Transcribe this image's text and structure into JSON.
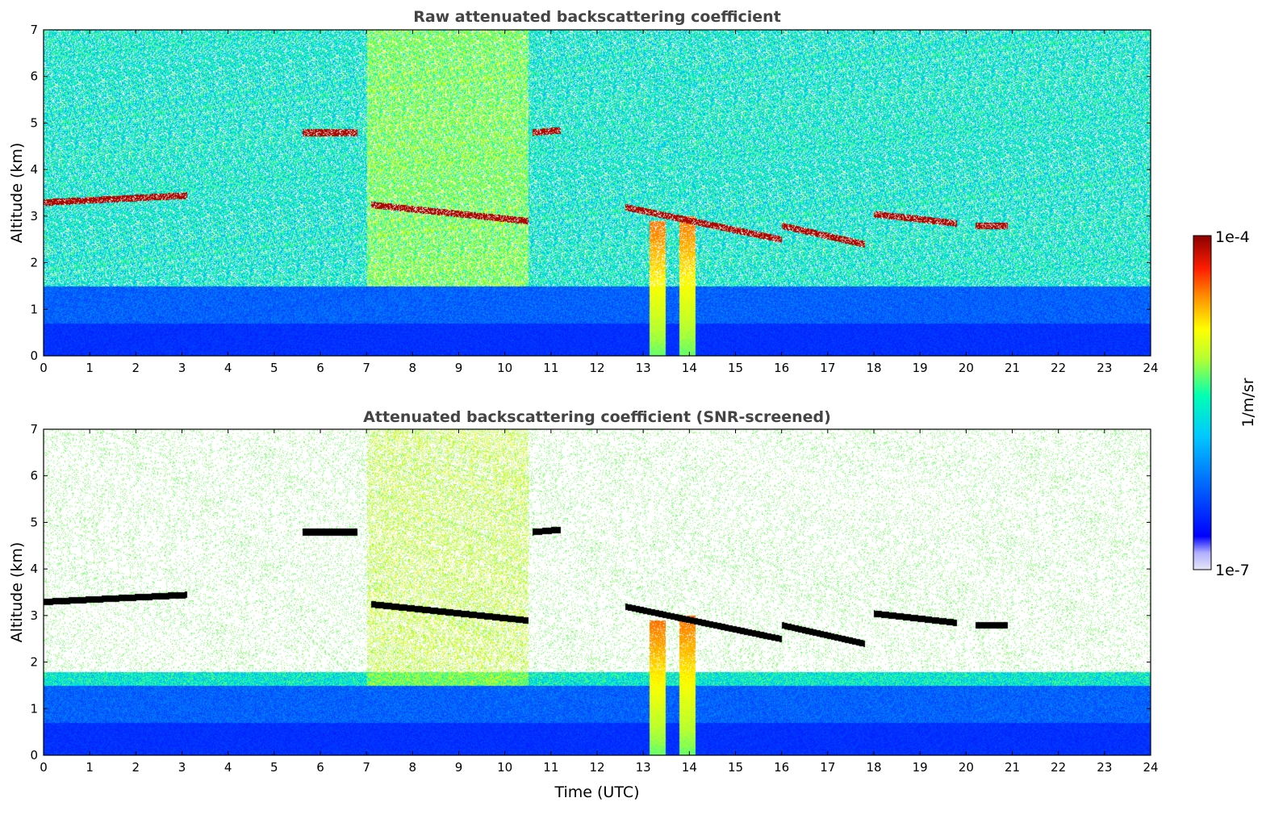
{
  "chart_data": [
    {
      "type": "heatmap",
      "id": "raw",
      "title": "Raw attenuated backscattering coefficient",
      "xlabel": "",
      "ylabel": "Altitude (km)",
      "xlim": [
        0,
        24
      ],
      "ylim": [
        0,
        7
      ],
      "xticks": [
        0,
        1,
        2,
        3,
        4,
        5,
        6,
        7,
        8,
        9,
        10,
        11,
        12,
        13,
        14,
        15,
        16,
        17,
        18,
        19,
        20,
        21,
        22,
        23,
        24
      ],
      "yticks": [
        0,
        1,
        2,
        3,
        4,
        5,
        6,
        7
      ],
      "screened": false,
      "cloud_layers": [
        {
          "t": [
            0.0,
            3.1
          ],
          "alt": [
            3.3,
            3.45
          ]
        },
        {
          "t": [
            5.6,
            6.8
          ],
          "alt": [
            4.8,
            4.8
          ]
        },
        {
          "t": [
            7.1,
            10.5
          ],
          "alt": [
            3.25,
            2.9
          ]
        },
        {
          "t": [
            10.6,
            11.2
          ],
          "alt": [
            4.8,
            4.85
          ]
        },
        {
          "t": [
            12.6,
            16.0
          ],
          "alt": [
            3.2,
            2.5
          ]
        },
        {
          "t": [
            16.0,
            17.8
          ],
          "alt": [
            2.8,
            2.4
          ]
        },
        {
          "t": [
            18.0,
            19.8
          ],
          "alt": [
            3.05,
            2.85
          ]
        },
        {
          "t": [
            20.2,
            20.9
          ],
          "alt": [
            2.8,
            2.8
          ]
        }
      ],
      "precipitation_streaks": [
        {
          "t": 13.3,
          "alt_top": 2.9
        },
        {
          "t": 13.95,
          "alt_top": 3.0
        }
      ]
    },
    {
      "type": "heatmap",
      "id": "screened",
      "title": "Attenuated backscattering coefficient (SNR-screened)",
      "xlabel": "Time (UTC)",
      "ylabel": "Altitude (km)",
      "xlim": [
        0,
        24
      ],
      "ylim": [
        0,
        7
      ],
      "xticks": [
        0,
        1,
        2,
        3,
        4,
        5,
        6,
        7,
        8,
        9,
        10,
        11,
        12,
        13,
        14,
        15,
        16,
        17,
        18,
        19,
        20,
        21,
        22,
        23,
        24
      ],
      "yticks": [
        0,
        1,
        2,
        3,
        4,
        5,
        6,
        7
      ],
      "screened": true
    }
  ],
  "colorbar": {
    "label": "1/m/sr",
    "max_label": "1e-4",
    "min_label": "1e-7",
    "scale": "log",
    "colormap": [
      "#e6e6f5",
      "#0000ff",
      "#0064ff",
      "#00c8ff",
      "#00ffb4",
      "#b4ff32",
      "#ffff00",
      "#ff8c00",
      "#ff1e00",
      "#8b0000"
    ]
  }
}
